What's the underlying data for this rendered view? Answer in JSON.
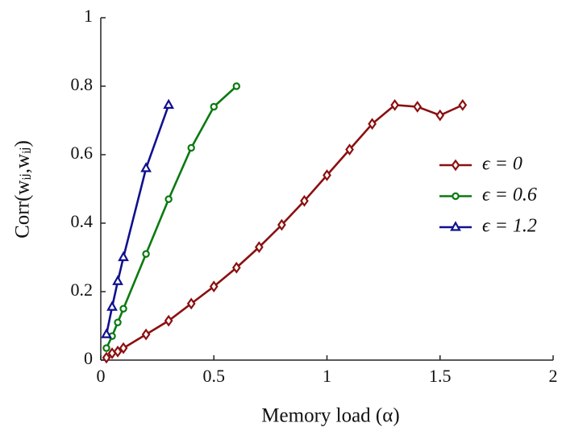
{
  "chart_data": {
    "type": "line",
    "xlabel": "Memory load (α)",
    "ylabel": "Corr(wᵢⱼ,wᵢⱼ)",
    "xlim": [
      0,
      2
    ],
    "xticks": [
      0,
      0.5,
      1,
      1.5,
      2
    ],
    "ylim": [
      0,
      1
    ],
    "yticks": [
      0,
      0.2,
      0.4,
      0.6,
      0.8,
      1
    ],
    "grid": false,
    "legend": "right",
    "series": [
      {
        "name": "ϵ = 0",
        "color": "#8b1010",
        "marker": "diamond",
        "x": [
          0.025,
          0.05,
          0.075,
          0.1,
          0.2,
          0.3,
          0.4,
          0.5,
          0.6,
          0.7,
          0.8,
          0.9,
          1.0,
          1.1,
          1.2,
          1.3,
          1.4,
          1.5,
          1.6
        ],
        "values": [
          0.007,
          0.02,
          0.025,
          0.035,
          0.075,
          0.115,
          0.165,
          0.215,
          0.27,
          0.33,
          0.395,
          0.465,
          0.54,
          0.615,
          0.69,
          0.745,
          0.74,
          0.715,
          0.745
        ]
      },
      {
        "name": "ϵ = 0.6",
        "color": "#0a7a10",
        "marker": "circle",
        "x": [
          0.025,
          0.05,
          0.075,
          0.1,
          0.2,
          0.3,
          0.4,
          0.5,
          0.6
        ],
        "values": [
          0.035,
          0.07,
          0.11,
          0.15,
          0.31,
          0.47,
          0.62,
          0.74,
          0.8
        ]
      },
      {
        "name": "ϵ = 1.2",
        "color": "#10108f",
        "marker": "triangle",
        "x": [
          0.025,
          0.05,
          0.075,
          0.1,
          0.2,
          0.3
        ],
        "values": [
          0.075,
          0.155,
          0.23,
          0.3,
          0.56,
          0.745
        ]
      }
    ]
  }
}
